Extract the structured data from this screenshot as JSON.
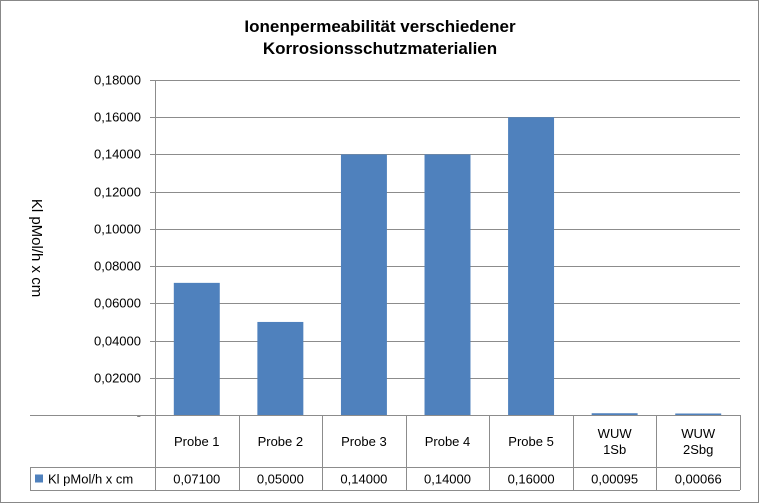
{
  "chart_data": {
    "type": "bar",
    "title": [
      "Ionenpermeabilität verschiedener",
      "Korrosionsschutzmaterialien"
    ],
    "ylabel": "Kl pMol/h x cm",
    "ylim": [
      0,
      0.18
    ],
    "y_ticks": [
      0,
      0.02,
      0.04,
      0.06,
      0.08,
      0.1,
      0.12,
      0.14,
      0.16,
      0.18
    ],
    "y_tick_labels": [
      "-",
      "0,02000",
      "0,04000",
      "0,06000",
      "0,08000",
      "0,10000",
      "0,12000",
      "0,14000",
      "0,16000",
      "0,18000"
    ],
    "categories": [
      [
        "Probe 1"
      ],
      [
        "Probe 2"
      ],
      [
        "Probe 3"
      ],
      [
        "Probe 4"
      ],
      [
        "Probe 5"
      ],
      [
        "WUW",
        "1Sb"
      ],
      [
        "WUW",
        "2Sbg"
      ]
    ],
    "series": [
      {
        "name": "Kl pMol/h x cm",
        "color": "#4f81bd",
        "values": [
          0.071,
          0.05,
          0.14,
          0.14,
          0.16,
          0.00095,
          0.00066
        ],
        "value_labels": [
          "0,07100",
          "0,05000",
          "0,14000",
          "0,14000",
          "0,16000",
          "0,00095",
          "0,00066"
        ]
      }
    ],
    "grid": true,
    "legend": "data-table"
  }
}
